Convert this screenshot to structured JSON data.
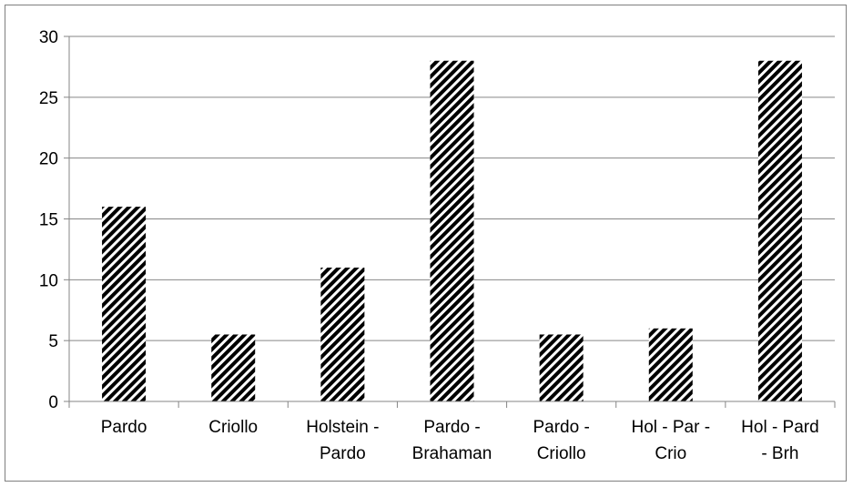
{
  "chart_data": {
    "type": "bar",
    "categories": [
      [
        "Pardo"
      ],
      [
        "Criollo"
      ],
      [
        "Holstein -",
        "Pardo"
      ],
      [
        "Pardo -",
        "Brahaman"
      ],
      [
        "Pardo -",
        "Criollo"
      ],
      [
        "Hol - Par -",
        "Crio"
      ],
      [
        "Hol - Pard",
        "- Brh"
      ]
    ],
    "values": [
      16,
      5.5,
      11,
      28,
      5.5,
      6,
      28
    ],
    "title": "",
    "xlabel": "",
    "ylabel": "",
    "ylim": [
      0,
      30
    ],
    "yticks": [
      0,
      5,
      10,
      15,
      20,
      25,
      30
    ],
    "grid": true,
    "legend": "none",
    "bar_fill": "#000000",
    "bar_pattern": "diagonal-hatch",
    "gridline_color": "#868686"
  }
}
